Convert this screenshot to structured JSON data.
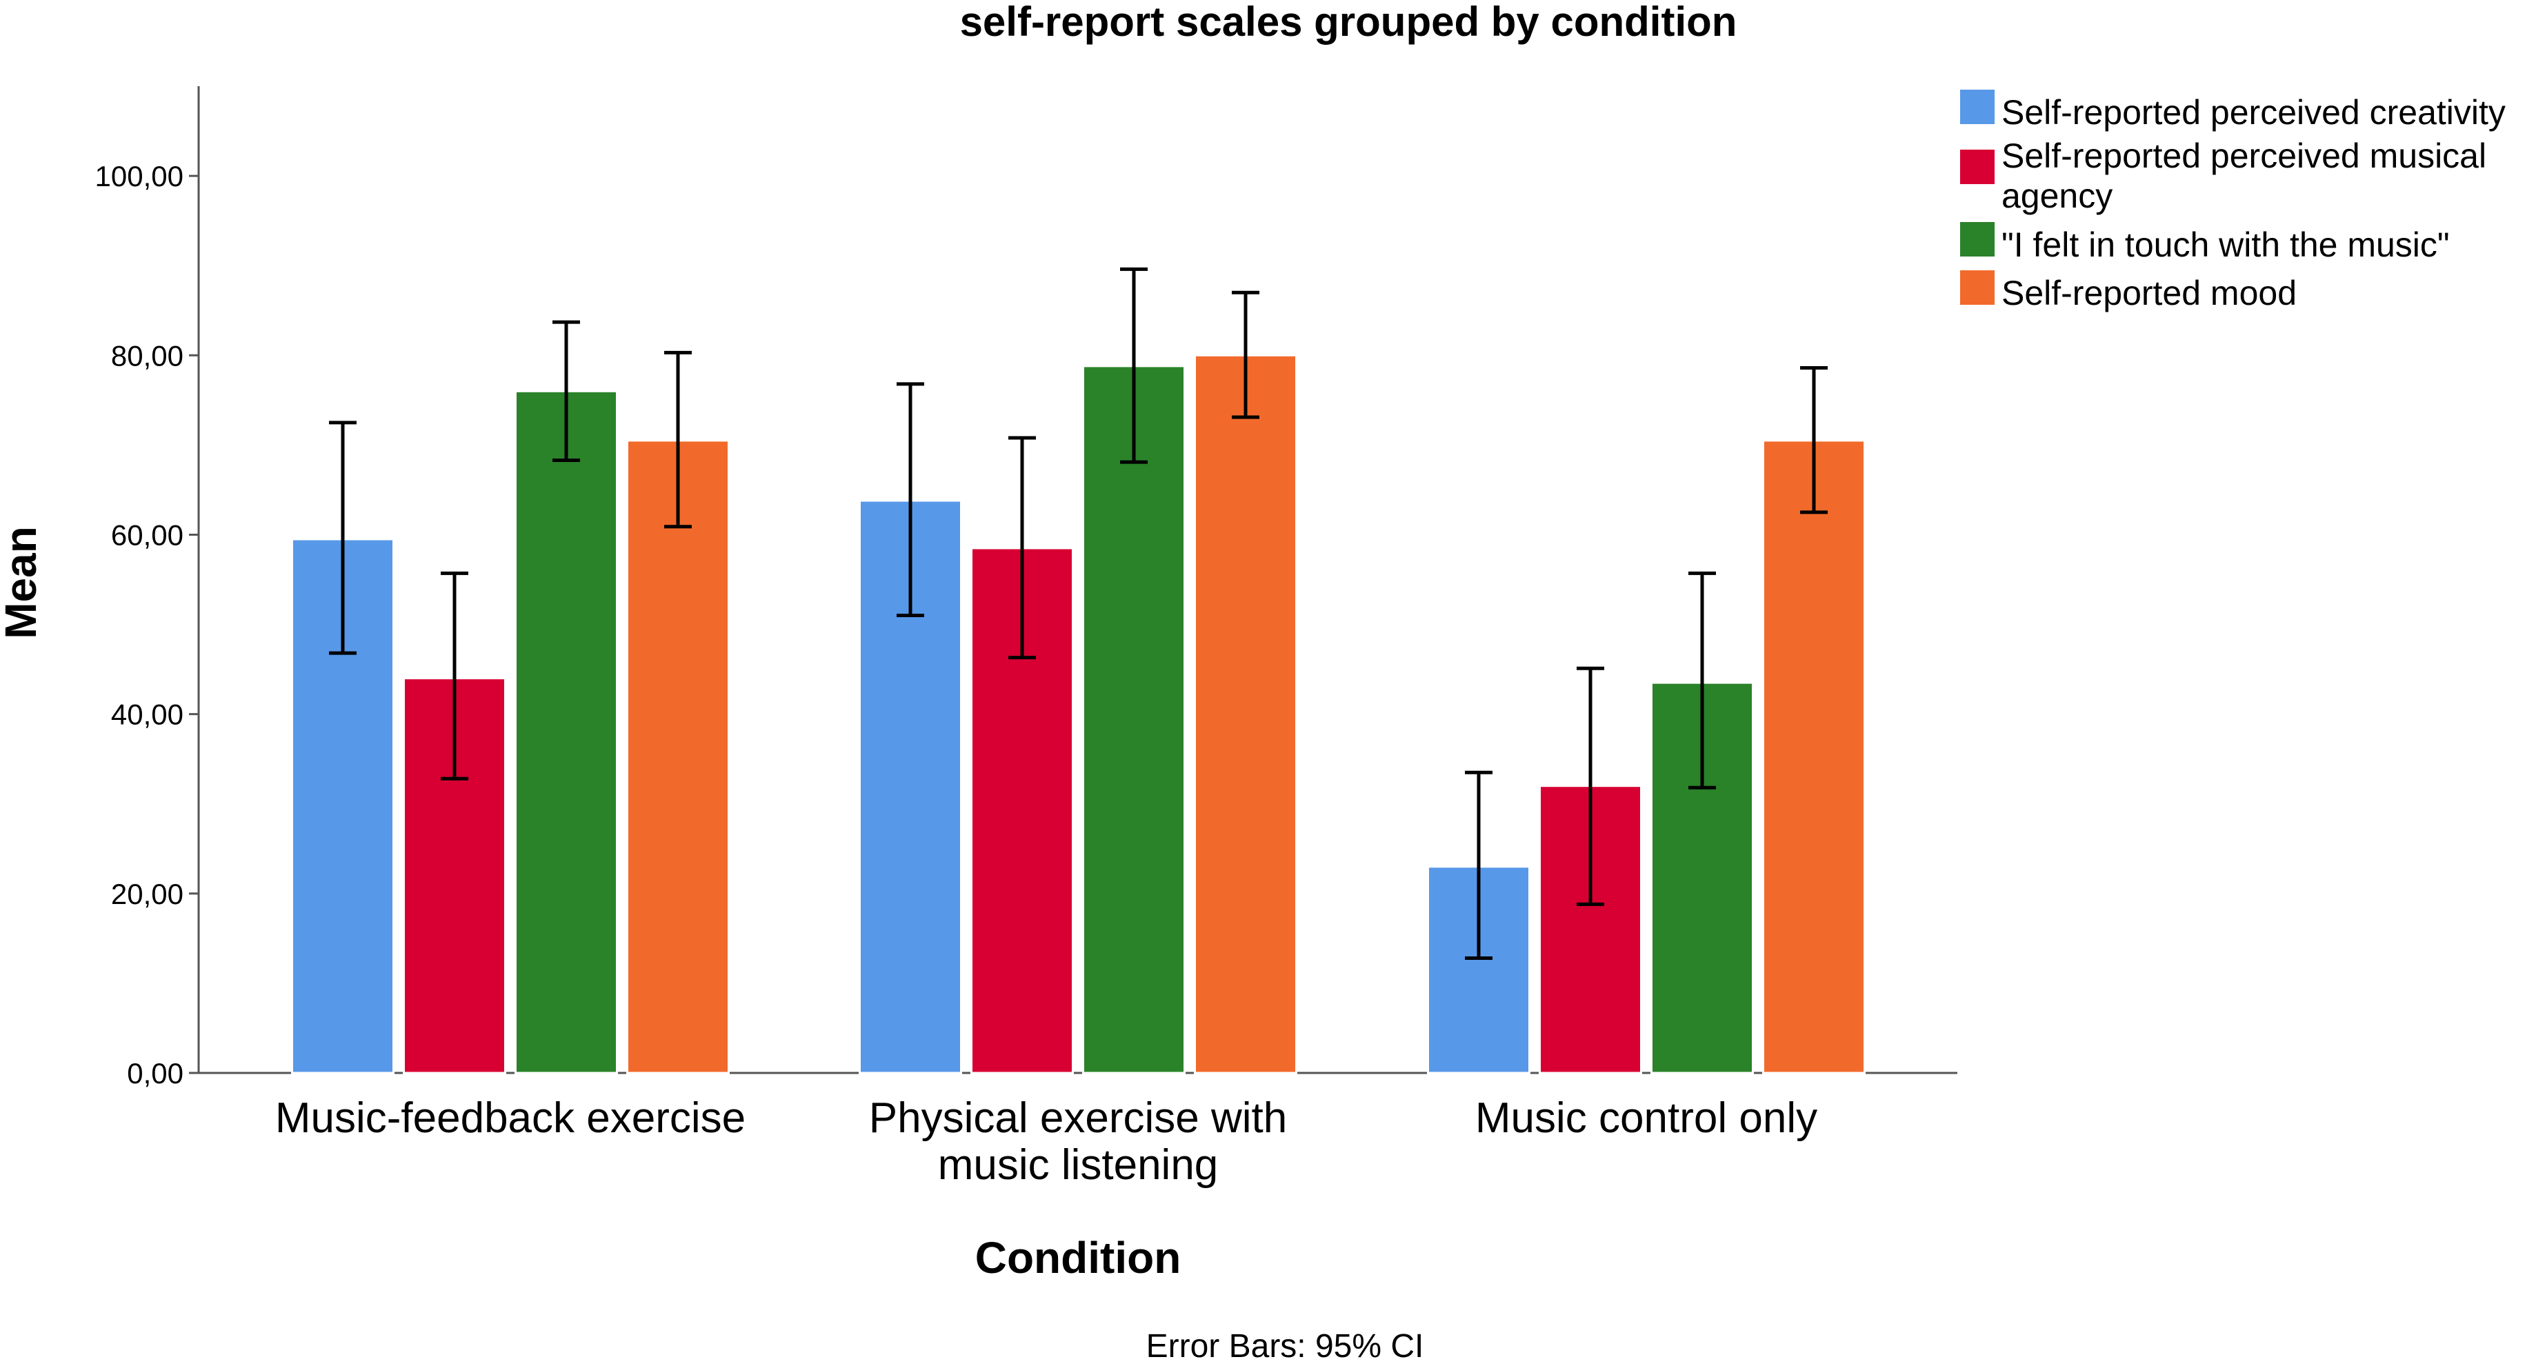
{
  "chart_data": {
    "type": "bar",
    "title": "self-report scales grouped by condition",
    "xlabel": "Condition",
    "ylabel": "Mean",
    "ylim": [
      0,
      110
    ],
    "yticks": [
      0,
      20,
      40,
      60,
      80,
      100
    ],
    "ytick_labels": [
      "0,00",
      "20,00",
      "40,00",
      "60,00",
      "80,00",
      "100,00"
    ],
    "categories": [
      [
        "Music-feedback exercise"
      ],
      [
        "Physical exercise with",
        "music listening"
      ],
      [
        "Music control only"
      ]
    ],
    "series": [
      {
        "name": "Self-reported perceived creativity",
        "legend_lines": [
          "Self-reported perceived creativity"
        ],
        "color": "#5898e8",
        "values": [
          59.5,
          63.8,
          23.0
        ],
        "ci_low": [
          46.8,
          51.0,
          12.8
        ],
        "ci_high": [
          72.5,
          76.8,
          33.5
        ]
      },
      {
        "name": "Self-reported perceived musical agency",
        "legend_lines": [
          "Self-reported perceived musical",
          "agency"
        ],
        "color": "#d80032",
        "values": [
          44.0,
          58.5,
          32.0
        ],
        "ci_low": [
          32.8,
          46.3,
          18.8
        ],
        "ci_high": [
          55.7,
          70.8,
          45.1
        ]
      },
      {
        "name": "\"I felt in touch with the music\"",
        "legend_lines": [
          "\"I felt in touch with the music\""
        ],
        "color": "#2a8229",
        "values": [
          76.0,
          78.8,
          43.5
        ],
        "ci_low": [
          68.3,
          68.1,
          31.8
        ],
        "ci_high": [
          83.7,
          89.6,
          55.7
        ]
      },
      {
        "name": "Self-reported mood",
        "legend_lines": [
          "Self-reported mood"
        ],
        "color": "#f26a2b",
        "values": [
          70.5,
          80.0,
          70.5
        ],
        "ci_low": [
          60.9,
          73.1,
          62.5
        ],
        "ci_high": [
          80.3,
          87.0,
          78.6
        ]
      }
    ],
    "legend_position": "top-right",
    "note": "Error Bars: 95% CI"
  }
}
